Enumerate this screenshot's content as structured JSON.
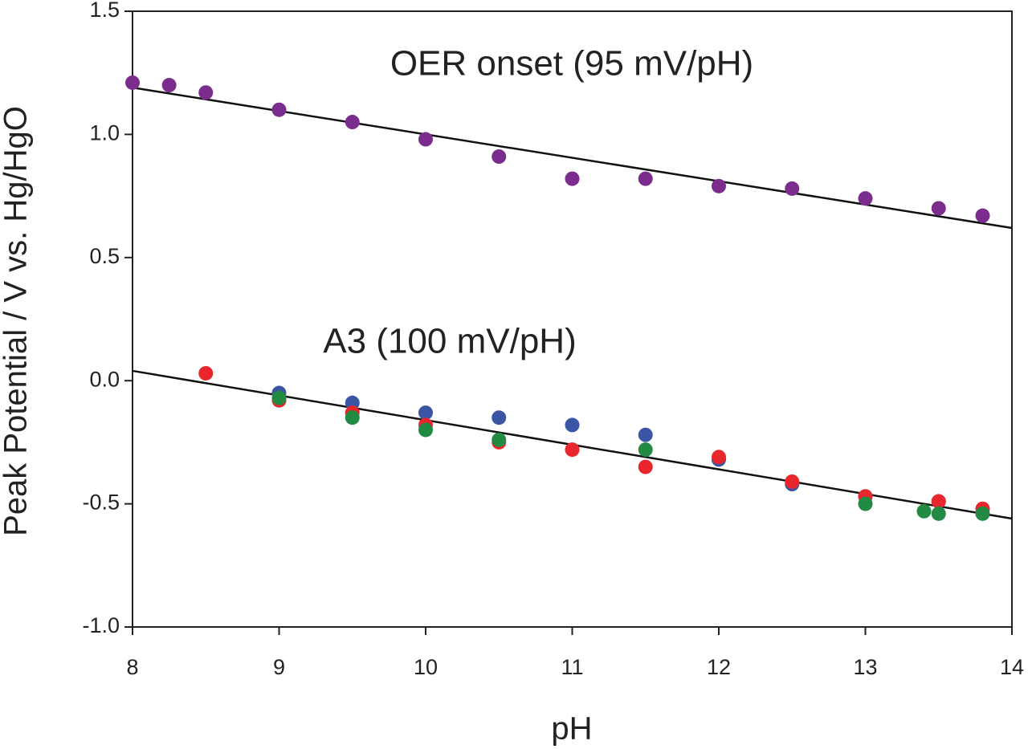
{
  "chart_data": {
    "type": "scatter",
    "x_label": "pH",
    "y_label": "Peak Potential / V vs. Hg/HgO",
    "xlim": [
      8,
      14
    ],
    "ylim": [
      -1.0,
      1.5
    ],
    "xticks": [
      8,
      9,
      10,
      11,
      12,
      13,
      14
    ],
    "yticks": [
      {
        "value": -1.0,
        "label": "-1.0"
      },
      -0.5,
      {
        "value": 0.0,
        "label": "0.0"
      },
      0.5,
      {
        "value": 1.0,
        "label": "1.0"
      },
      1.5
    ],
    "series": [
      {
        "color": "#7b2d8e",
        "x": [
          8,
          8.25,
          8.5,
          9,
          9.5,
          10,
          10.5,
          11,
          11.5,
          12,
          12.5,
          13,
          13.5,
          13.8
        ],
        "values": [
          1.21,
          1.2,
          1.17,
          1.1,
          1.05,
          0.98,
          0.91,
          0.82,
          0.82,
          0.79,
          0.78,
          0.74,
          0.7,
          0.67
        ]
      },
      {
        "color": "#3a55a4",
        "x": [
          9,
          9.5,
          10,
          10.5,
          11,
          11.5,
          12,
          12.5,
          13,
          13.5
        ],
        "values": [
          -0.05,
          -0.09,
          -0.13,
          -0.15,
          -0.18,
          -0.22,
          -0.32,
          -0.42,
          -0.47,
          -0.49
        ]
      },
      {
        "color": "#e8262b",
        "x": [
          8.5,
          9,
          9.5,
          10,
          10.5,
          11,
          11.5,
          12,
          12.5,
          13,
          13.5,
          13.8
        ],
        "values": [
          0.03,
          -0.08,
          -0.13,
          -0.18,
          -0.25,
          -0.28,
          -0.35,
          -0.31,
          -0.41,
          -0.47,
          -0.49,
          -0.52
        ]
      },
      {
        "color": "#238a43",
        "x": [
          9,
          9.5,
          10,
          10.5,
          11.5,
          13,
          13.4,
          13.5,
          13.8
        ],
        "values": [
          -0.07,
          -0.15,
          -0.2,
          -0.24,
          -0.28,
          -0.5,
          -0.53,
          -0.54,
          -0.54
        ]
      }
    ],
    "fit_lines": [
      {
        "color": "#111111",
        "x": [
          8,
          14
        ],
        "values": [
          1.19,
          0.62
        ]
      },
      {
        "color": "#111111",
        "x": [
          8,
          14
        ],
        "values": [
          0.04,
          -0.56
        ]
      }
    ],
    "annotations": [
      "OER onset (95 mV/pH)",
      "A3 (100 mV/pH)"
    ]
  }
}
